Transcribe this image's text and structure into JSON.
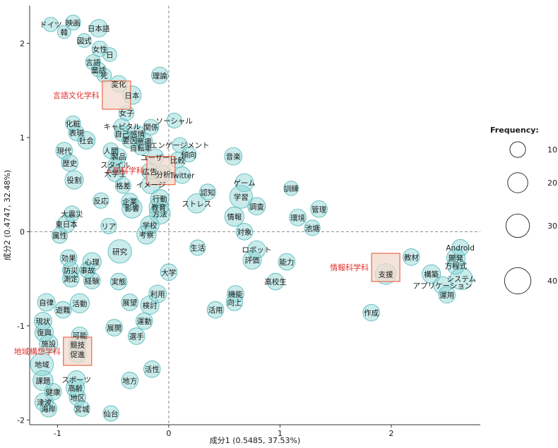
{
  "chart_data": {
    "type": "scatter",
    "subtype": "correspondence-analysis bubble plot",
    "title": "",
    "xlabel": "成分1 (0.5485, 37.53%)",
    "ylabel": "成分2 (0.4747, 32.48%)",
    "xlim": [
      -1.25,
      2.8
    ],
    "ylim": [
      -2.05,
      2.4
    ],
    "x_ticks": [
      "-1",
      "0",
      "1",
      "2"
    ],
    "y_ticks": [
      "2",
      "1",
      "0",
      "-1",
      "-2"
    ],
    "grid": false,
    "reference_lines": "dashed lines at x=0 and y=0",
    "colors": {
      "bubble_fill": "#7fcfd0",
      "bubble_stroke": "#4fb7b8",
      "bubble_dense": "#3aa7a8",
      "category": "#e0302b",
      "category_box_fill": "#f2d9cc",
      "category_box_stroke": "#e96b4e"
    },
    "legend": {
      "title": "Frequency:",
      "position": "right",
      "values": [
        10,
        20,
        30,
        40
      ]
    },
    "categories": [
      {
        "label": "言語文化学科",
        "x": -0.47,
        "y": 1.45
      },
      {
        "label": "人間科学科",
        "x": -0.07,
        "y": 0.65
      },
      {
        "label": "情報科学科",
        "x": 1.95,
        "y": -0.38
      },
      {
        "label": "地域構想学科",
        "x": -0.82,
        "y": -1.27
      }
    ],
    "words": [
      {
        "label": "ドイツ",
        "x": -1.06,
        "y": 2.2,
        "freq": 8
      },
      {
        "label": "映画",
        "x": -0.86,
        "y": 2.22,
        "freq": 9
      },
      {
        "label": "日本語",
        "x": -0.63,
        "y": 2.16,
        "freq": 14
      },
      {
        "label": "韓",
        "x": -0.94,
        "y": 2.12,
        "freq": 6
      },
      {
        "label": "図式",
        "x": -0.76,
        "y": 2.03,
        "freq": 7
      },
      {
        "label": "女性",
        "x": -0.62,
        "y": 1.94,
        "freq": 10
      },
      {
        "label": "言語",
        "x": -0.68,
        "y": 1.8,
        "freq": 9
      },
      {
        "label": "童話",
        "x": -0.63,
        "y": 1.72,
        "freq": 8
      },
      {
        "label": "日",
        "x": -0.53,
        "y": 1.88,
        "freq": 7
      },
      {
        "label": "死",
        "x": -0.58,
        "y": 1.66,
        "freq": 8
      },
      {
        "label": "変化",
        "x": -0.45,
        "y": 1.57,
        "freq": 12
      },
      {
        "label": "理論",
        "x": -0.08,
        "y": 1.66,
        "freq": 12
      },
      {
        "label": "日本",
        "x": -0.33,
        "y": 1.45,
        "freq": 16
      },
      {
        "label": "女子",
        "x": -0.38,
        "y": 1.26,
        "freq": 9
      },
      {
        "label": "化粧",
        "x": -0.86,
        "y": 1.15,
        "freq": 9
      },
      {
        "label": "キャピタル",
        "x": -0.42,
        "y": 1.12,
        "freq": 10
      },
      {
        "label": "関係",
        "x": -0.16,
        "y": 1.11,
        "freq": 10
      },
      {
        "label": "ソーシャル",
        "x": 0.05,
        "y": 1.18,
        "freq": 9
      },
      {
        "label": "表現",
        "x": -0.83,
        "y": 1.05,
        "freq": 10
      },
      {
        "label": "自己",
        "x": -0.42,
        "y": 1.04,
        "freq": 9
      },
      {
        "label": "感情",
        "x": -0.28,
        "y": 1.04,
        "freq": 10
      },
      {
        "label": "社会",
        "x": -0.74,
        "y": 0.97,
        "freq": 14
      },
      {
        "label": "要因",
        "x": -0.35,
        "y": 0.97,
        "freq": 10
      },
      {
        "label": "意識",
        "x": -0.22,
        "y": 0.96,
        "freq": 12
      },
      {
        "label": "自転車",
        "x": -0.25,
        "y": 0.89,
        "freq": 8
      },
      {
        "label": "エンゲージメント",
        "x": 0.1,
        "y": 0.92,
        "freq": 9
      },
      {
        "label": "現代",
        "x": -0.94,
        "y": 0.86,
        "freq": 12
      },
      {
        "label": "人間",
        "x": -0.52,
        "y": 0.86,
        "freq": 10
      },
      {
        "label": "傾向",
        "x": 0.18,
        "y": 0.82,
        "freq": 9
      },
      {
        "label": "製品",
        "x": -0.45,
        "y": 0.8,
        "freq": 10
      },
      {
        "label": "ユーザー",
        "x": -0.12,
        "y": 0.79,
        "freq": 12
      },
      {
        "label": "音楽",
        "x": 0.58,
        "y": 0.8,
        "freq": 14
      },
      {
        "label": "歴史",
        "x": -0.89,
        "y": 0.73,
        "freq": 12
      },
      {
        "label": "スタイル",
        "x": -0.48,
        "y": 0.71,
        "freq": 9
      },
      {
        "label": "比較",
        "x": 0.08,
        "y": 0.76,
        "freq": 10
      },
      {
        "label": "大学生",
        "x": -0.48,
        "y": 0.62,
        "freq": 12
      },
      {
        "label": "広告",
        "x": -0.17,
        "y": 0.64,
        "freq": 12
      },
      {
        "label": "分析",
        "x": -0.05,
        "y": 0.61,
        "freq": 14
      },
      {
        "label": "Twitter",
        "x": 0.12,
        "y": 0.6,
        "freq": 12
      },
      {
        "label": "役割",
        "x": -0.85,
        "y": 0.55,
        "freq": 16
      },
      {
        "label": "ゲーム",
        "x": 0.68,
        "y": 0.52,
        "freq": 15
      },
      {
        "label": "格差",
        "x": -0.41,
        "y": 0.49,
        "freq": 10
      },
      {
        "label": "イメージ",
        "x": -0.16,
        "y": 0.5,
        "freq": 16
      },
      {
        "label": "認知",
        "x": 0.35,
        "y": 0.42,
        "freq": 11
      },
      {
        "label": "訓練",
        "x": 1.1,
        "y": 0.46,
        "freq": 8
      },
      {
        "label": "反応",
        "x": -0.61,
        "y": 0.33,
        "freq": 10
      },
      {
        "label": "企業",
        "x": -0.35,
        "y": 0.32,
        "freq": 12
      },
      {
        "label": "行動",
        "x": -0.08,
        "y": 0.35,
        "freq": 16
      },
      {
        "label": "学習",
        "x": 0.65,
        "y": 0.37,
        "freq": 28
      },
      {
        "label": "ストレス",
        "x": 0.25,
        "y": 0.3,
        "freq": 18
      },
      {
        "label": "影響",
        "x": -0.33,
        "y": 0.25,
        "freq": 20
      },
      {
        "label": "教育",
        "x": -0.09,
        "y": 0.26,
        "freq": 18
      },
      {
        "label": "調査",
        "x": 0.79,
        "y": 0.27,
        "freq": 14
      },
      {
        "label": "管理",
        "x": 1.35,
        "y": 0.24,
        "freq": 12
      },
      {
        "label": "大震災",
        "x": -0.87,
        "y": 0.19,
        "freq": 10
      },
      {
        "label": "方法",
        "x": -0.08,
        "y": 0.19,
        "freq": 22
      },
      {
        "label": "情報",
        "x": 0.59,
        "y": 0.16,
        "freq": 18
      },
      {
        "label": "環境",
        "x": 1.16,
        "y": 0.15,
        "freq": 12
      },
      {
        "label": "東日本",
        "x": -0.92,
        "y": 0.08,
        "freq": 14
      },
      {
        "label": "リア",
        "x": -0.54,
        "y": 0.06,
        "freq": 10
      },
      {
        "label": "学校",
        "x": -0.17,
        "y": 0.07,
        "freq": 16
      },
      {
        "label": "池塘",
        "x": 1.29,
        "y": 0.04,
        "freq": 10
      },
      {
        "label": "属性",
        "x": -0.98,
        "y": -0.04,
        "freq": 10
      },
      {
        "label": "考察",
        "x": -0.2,
        "y": -0.03,
        "freq": 18
      },
      {
        "label": "対象",
        "x": 0.68,
        "y": 0.0,
        "freq": 12
      },
      {
        "label": "生活",
        "x": 0.26,
        "y": -0.17,
        "freq": 10
      },
      {
        "label": "研究",
        "x": -0.44,
        "y": -0.21,
        "freq": 30
      },
      {
        "label": "ロボット",
        "x": 0.79,
        "y": -0.19,
        "freq": 14
      },
      {
        "label": "効果",
        "x": -0.9,
        "y": -0.28,
        "freq": 12
      },
      {
        "label": "心理",
        "x": -0.69,
        "y": -0.32,
        "freq": 16
      },
      {
        "label": "評価",
        "x": 0.75,
        "y": -0.3,
        "freq": 16
      },
      {
        "label": "能力",
        "x": 1.06,
        "y": -0.32,
        "freq": 12
      },
      {
        "label": "教材",
        "x": 2.18,
        "y": -0.27,
        "freq": 12
      },
      {
        "label": "開発",
        "x": 2.58,
        "y": -0.28,
        "freq": 16
      },
      {
        "label": "Android",
        "x": 2.62,
        "y": -0.17,
        "freq": 12
      },
      {
        "label": "方程式",
        "x": 2.58,
        "y": -0.36,
        "freq": 14
      },
      {
        "label": "支援",
        "x": 1.95,
        "y": -0.45,
        "freq": 22
      },
      {
        "label": "構築",
        "x": 2.36,
        "y": -0.45,
        "freq": 16
      },
      {
        "label": "システム",
        "x": 2.63,
        "y": -0.5,
        "freq": 26
      },
      {
        "label": "防災",
        "x": -0.88,
        "y": -0.41,
        "freq": 12
      },
      {
        "label": "事故",
        "x": -0.73,
        "y": -0.41,
        "freq": 10
      },
      {
        "label": "大学",
        "x": 0.0,
        "y": -0.43,
        "freq": 12
      },
      {
        "label": "測定",
        "x": -0.88,
        "y": -0.5,
        "freq": 12
      },
      {
        "label": "経験",
        "x": -0.69,
        "y": -0.52,
        "freq": 12
      },
      {
        "label": "実態",
        "x": -0.45,
        "y": -0.53,
        "freq": 12
      },
      {
        "label": "高校生",
        "x": 0.96,
        "y": -0.53,
        "freq": 12
      },
      {
        "label": "アプリケーション",
        "x": 2.46,
        "y": -0.57,
        "freq": 14
      },
      {
        "label": "機能",
        "x": 0.6,
        "y": -0.66,
        "freq": 12
      },
      {
        "label": "運用",
        "x": 2.5,
        "y": -0.67,
        "freq": 12
      },
      {
        "label": "利用",
        "x": -0.1,
        "y": -0.66,
        "freq": 14
      },
      {
        "label": "自律",
        "x": -1.1,
        "y": -0.75,
        "freq": 14
      },
      {
        "label": "活動",
        "x": -0.8,
        "y": -0.76,
        "freq": 18
      },
      {
        "label": "展望",
        "x": -0.35,
        "y": -0.75,
        "freq": 12
      },
      {
        "label": "検討",
        "x": -0.17,
        "y": -0.78,
        "freq": 16
      },
      {
        "label": "向上",
        "x": 0.59,
        "y": -0.75,
        "freq": 12
      },
      {
        "label": "活用",
        "x": 0.42,
        "y": -0.83,
        "freq": 12
      },
      {
        "label": "遊難",
        "x": -0.95,
        "y": -0.83,
        "freq": 12
      },
      {
        "label": "作成",
        "x": 1.82,
        "y": -0.86,
        "freq": 12
      },
      {
        "label": "現状",
        "x": -1.13,
        "y": -0.95,
        "freq": 14
      },
      {
        "label": "運動",
        "x": -0.22,
        "y": -0.95,
        "freq": 12
      },
      {
        "label": "展開",
        "x": -0.49,
        "y": -1.02,
        "freq": 12
      },
      {
        "label": "復興",
        "x": -1.12,
        "y": -1.07,
        "freq": 16
      },
      {
        "label": "可能",
        "x": -0.8,
        "y": -1.1,
        "freq": 12
      },
      {
        "label": "選手",
        "x": -0.29,
        "y": -1.11,
        "freq": 12
      },
      {
        "label": "施設",
        "x": -1.08,
        "y": -1.19,
        "freq": 16
      },
      {
        "label": "競技",
        "x": -0.82,
        "y": -1.2,
        "freq": 14
      },
      {
        "label": "促進",
        "x": -0.82,
        "y": -1.3,
        "freq": 14
      },
      {
        "label": "地域",
        "x": -1.14,
        "y": -1.41,
        "freq": 28
      },
      {
        "label": "活性",
        "x": -0.15,
        "y": -1.46,
        "freq": 12
      },
      {
        "label": "課題",
        "x": -1.13,
        "y": -1.58,
        "freq": 20
      },
      {
        "label": "スポーツ",
        "x": -0.83,
        "y": -1.57,
        "freq": 14
      },
      {
        "label": "地方",
        "x": -0.35,
        "y": -1.58,
        "freq": 12
      },
      {
        "label": "高齢",
        "x": -0.84,
        "y": -1.66,
        "freq": 16
      },
      {
        "label": "健康",
        "x": -1.04,
        "y": -1.7,
        "freq": 12
      },
      {
        "label": "地区",
        "x": -0.82,
        "y": -1.76,
        "freq": 12
      },
      {
        "label": "津波",
        "x": -1.12,
        "y": -1.81,
        "freq": 16
      },
      {
        "label": "海岸",
        "x": -1.08,
        "y": -1.88,
        "freq": 12
      },
      {
        "label": "宮城",
        "x": -0.78,
        "y": -1.88,
        "freq": 10
      },
      {
        "label": "仙台",
        "x": -0.52,
        "y": -1.93,
        "freq": 10
      }
    ]
  }
}
